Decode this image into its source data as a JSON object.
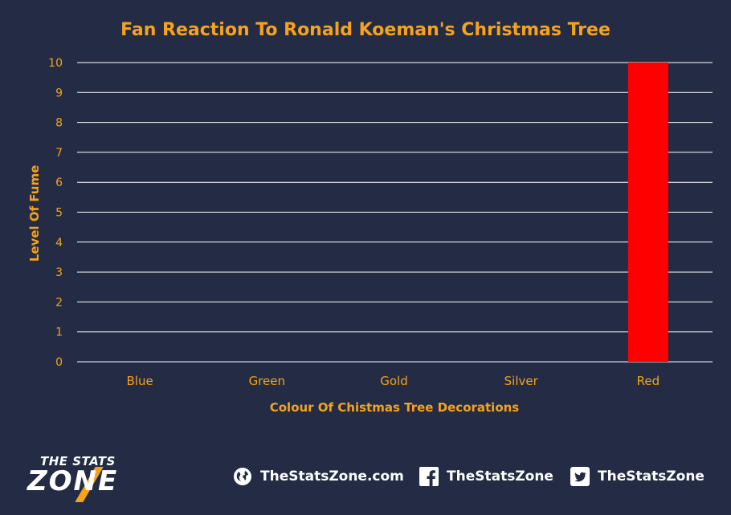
{
  "chart_data": {
    "type": "bar",
    "title": "Fan Reaction To Ronald Koeman's Christmas Tree",
    "xlabel": "Colour Of Chistmas Tree Decorations",
    "ylabel": "Level Of Fume",
    "categories": [
      "Blue",
      "Green",
      "Gold",
      "Silver",
      "Red"
    ],
    "values": [
      0,
      0,
      0,
      0,
      10
    ],
    "ylim": [
      0,
      10
    ],
    "yticks": [
      "0",
      "1",
      "2",
      "3",
      "4",
      "5",
      "6",
      "7",
      "8",
      "9",
      "10"
    ],
    "grid": true,
    "bar_color": "#ff0000"
  },
  "colors": {
    "background": "#232c44",
    "accent": "#f7a21b",
    "gridline": "#ffffff",
    "text": "#ffffff"
  },
  "footer": {
    "logo_top": "THE STATS",
    "logo_bottom": "ZONE",
    "website": "TheStatsZone.com",
    "facebook": "TheStatsZone",
    "twitter": "TheStatsZone",
    "icons": [
      "globe-icon",
      "facebook-icon",
      "twitter-icon"
    ]
  }
}
